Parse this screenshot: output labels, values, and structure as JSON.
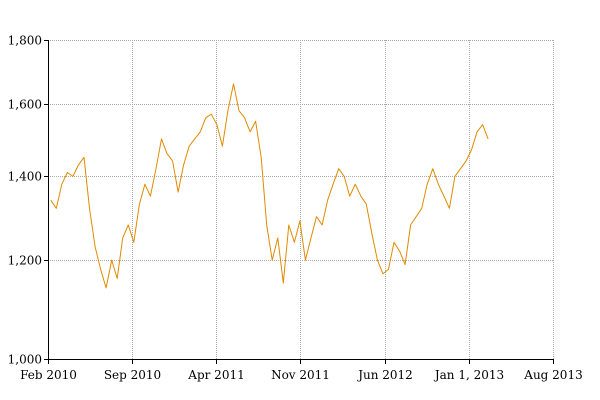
{
  "chart_data": {
    "type": "line",
    "title": "",
    "xlabel": "",
    "ylabel": "",
    "y_scale": "log",
    "ylim": [
      1000,
      1800
    ],
    "xlim": [
      "2010-02-01",
      "2013-08-01"
    ],
    "grid": true,
    "line_color": "#e08a00",
    "y_ticks": [
      {
        "value": 1000,
        "label": "1,000"
      },
      {
        "value": 1200,
        "label": "1,200"
      },
      {
        "value": 1400,
        "label": "1,400"
      },
      {
        "value": 1600,
        "label": "1,600"
      },
      {
        "value": 1800,
        "label": "1,800"
      }
    ],
    "x_ticks": [
      {
        "date": "2010-02-01",
        "label": "Feb 2010"
      },
      {
        "date": "2010-09-01",
        "label": "Sep 2010"
      },
      {
        "date": "2011-04-01",
        "label": "Apr 2011"
      },
      {
        "date": "2011-11-01",
        "label": "Nov 2011"
      },
      {
        "date": "2012-06-01",
        "label": "Jun 2012"
      },
      {
        "date": "2013-01-01",
        "label": "Jan 1, 2013"
      },
      {
        "date": "2013-08-01",
        "label": "Aug 2013"
      }
    ],
    "series": [
      {
        "x": [
          "2010-02-08",
          "2010-02-22",
          "2010-03-08",
          "2010-03-22",
          "2010-04-05",
          "2010-04-19",
          "2010-05-03",
          "2010-05-17",
          "2010-05-31",
          "2010-06-14",
          "2010-06-28",
          "2010-07-12",
          "2010-07-26",
          "2010-08-09",
          "2010-08-23",
          "2010-09-06",
          "2010-09-20",
          "2010-10-04",
          "2010-10-18",
          "2010-11-01",
          "2010-11-15",
          "2010-11-29",
          "2010-12-13",
          "2010-12-27",
          "2011-01-10",
          "2011-01-24",
          "2011-02-07",
          "2011-02-21",
          "2011-03-07",
          "2011-03-21",
          "2011-04-04",
          "2011-04-18",
          "2011-05-02",
          "2011-05-16",
          "2011-05-30",
          "2011-06-13",
          "2011-06-27",
          "2011-07-11",
          "2011-07-25",
          "2011-08-08",
          "2011-08-22",
          "2011-09-05",
          "2011-09-19",
          "2011-10-03",
          "2011-10-17",
          "2011-10-31",
          "2011-11-14",
          "2011-11-28",
          "2011-12-12",
          "2011-12-26",
          "2012-01-09",
          "2012-01-23",
          "2012-02-06",
          "2012-02-20",
          "2012-03-05",
          "2012-03-19",
          "2012-04-02",
          "2012-04-16",
          "2012-04-30",
          "2012-05-14",
          "2012-05-28",
          "2012-06-11",
          "2012-06-25",
          "2012-07-09",
          "2012-07-23",
          "2012-08-06",
          "2012-08-20",
          "2012-09-03",
          "2012-09-17",
          "2012-10-01",
          "2012-10-15",
          "2012-10-29",
          "2012-11-12",
          "2012-11-26",
          "2012-12-10",
          "2012-12-24",
          "2013-01-07",
          "2013-01-21",
          "2013-02-04",
          "2013-02-18"
        ],
        "y": [
          1340,
          1320,
          1380,
          1410,
          1400,
          1430,
          1450,
          1320,
          1230,
          1180,
          1140,
          1200,
          1160,
          1250,
          1280,
          1240,
          1330,
          1380,
          1350,
          1420,
          1500,
          1460,
          1440,
          1360,
          1430,
          1480,
          1500,
          1520,
          1560,
          1570,
          1540,
          1480,
          1580,
          1660,
          1580,
          1560,
          1520,
          1550,
          1450,
          1280,
          1200,
          1250,
          1150,
          1280,
          1240,
          1290,
          1200,
          1250,
          1300,
          1280,
          1340,
          1380,
          1420,
          1400,
          1350,
          1380,
          1350,
          1330,
          1260,
          1200,
          1170,
          1180,
          1240,
          1220,
          1190,
          1280,
          1300,
          1320,
          1380,
          1420,
          1380,
          1350,
          1320,
          1400,
          1420,
          1440,
          1470,
          1520,
          1540,
          1500
        ]
      }
    ]
  }
}
